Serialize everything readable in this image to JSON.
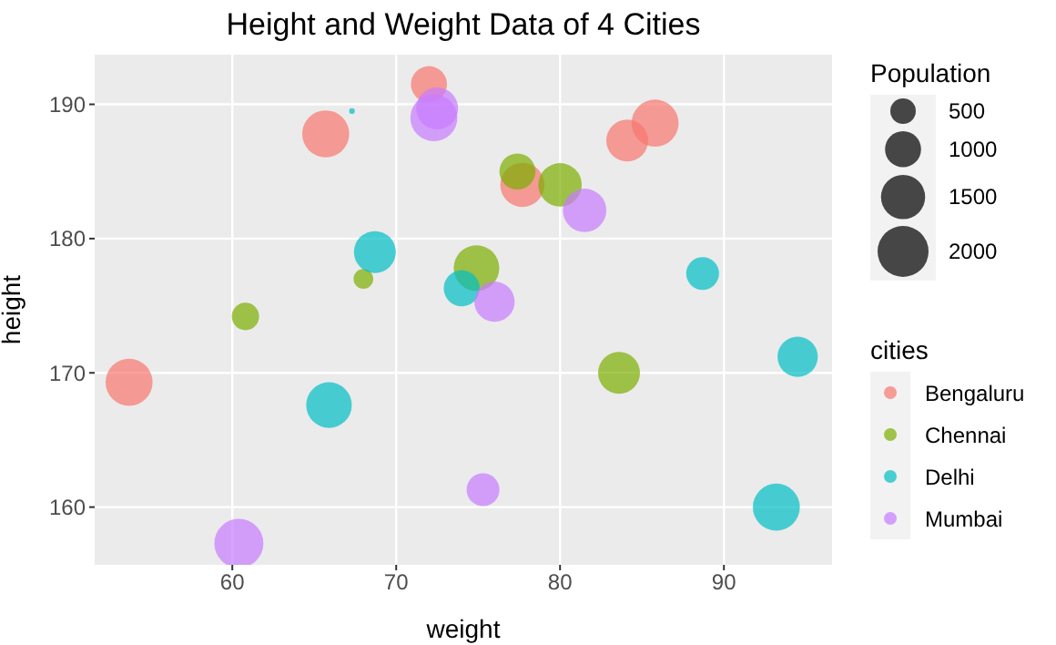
{
  "chart_data": {
    "type": "bubble",
    "title": "Height and Weight Data of 4 Cities",
    "xlabel": "weight",
    "ylabel": "height",
    "xlim": [
      51.6,
      96.6
    ],
    "ylim": [
      155.7,
      193.7
    ],
    "xticks": [
      60,
      70,
      80,
      90
    ],
    "yticks": [
      160,
      170,
      180,
      190
    ],
    "grid": true,
    "legend": "right",
    "legend_title": "cities",
    "marker": "circle",
    "size_legend": [
      500,
      1000,
      1500,
      2000
    ],
    "annotations": [
      "Population"
    ],
    "series": [
      {
        "name": "Bengaluru",
        "color": "#f8766d",
        "x": [
          53.7,
          65.7,
          72,
          77.7,
          84.1,
          85.8
        ],
        "values": [
          169.3,
          187.8,
          191.5,
          184,
          187.3,
          188.6
        ],
        "sizes": [
          1700,
          1700,
          1000,
          1500,
          1350,
          1700
        ]
      },
      {
        "name": "Chennai",
        "color": "#7cae00",
        "x": [
          60.8,
          68,
          74.9,
          77.4,
          80,
          83.6
        ],
        "values": [
          174.2,
          177,
          177.8,
          185,
          184,
          170
        ],
        "sizes": [
          575,
          300,
          1600,
          1000,
          1450,
          1350
        ]
      },
      {
        "name": "Delhi",
        "color": "#00bfc4",
        "x": [
          67.3,
          68.7,
          65.9,
          74,
          88.7,
          94.5,
          93.2
        ],
        "values": [
          189.5,
          179,
          167.6,
          176.3,
          177.4,
          171.2,
          160
        ],
        "sizes": [
          25,
          1350,
          1600,
          1000,
          830,
          1250,
          1700
        ]
      },
      {
        "name": "Mumbai",
        "color": "#c77cff",
        "x": [
          72.3,
          72.5,
          76,
          75.3,
          60.4,
          81.5
        ],
        "values": [
          189,
          189.7,
          175.3,
          161.3,
          157.3,
          182.1
        ],
        "sizes": [
          1700,
          1350,
          1250,
          830,
          1850,
          1450
        ]
      }
    ]
  }
}
